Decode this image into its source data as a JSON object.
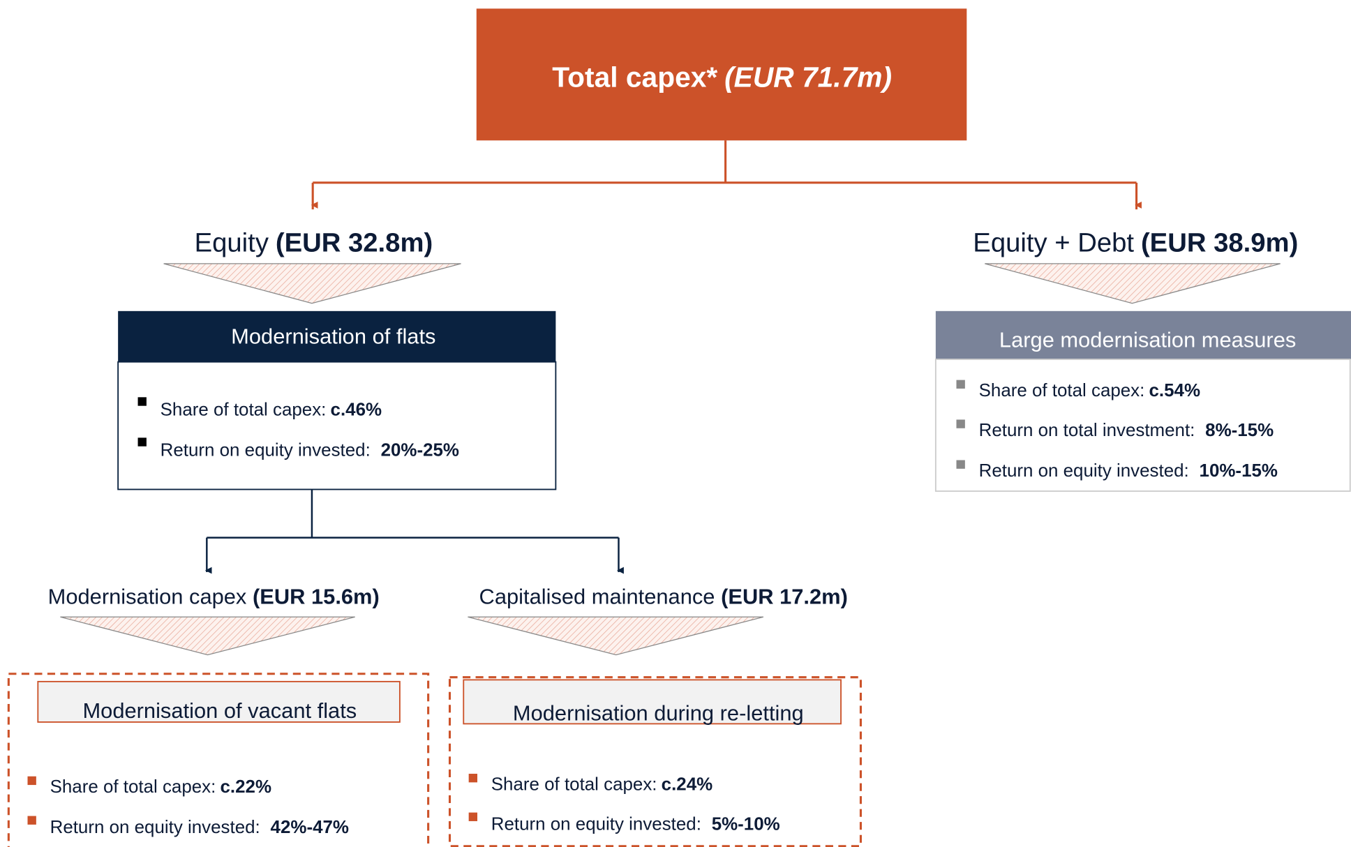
{
  "root": {
    "label": "Total capex*",
    "amount": "(EUR 71.7m)"
  },
  "equity": {
    "label": "Equity",
    "amount": "(EUR 32.8m)",
    "box": {
      "title": "Modernisation of flats",
      "items": [
        {
          "label": "Share of total capex:",
          "value": "c.46%"
        },
        {
          "label": "Return on equity invested:",
          "value": "20%-25%"
        }
      ]
    }
  },
  "equity_debt": {
    "label": "Equity + Debt",
    "amount": "(EUR 38.9m)",
    "box": {
      "title": "Large modernisation measures",
      "items": [
        {
          "label": "Share of total capex:",
          "value": "c.54%"
        },
        {
          "label": "Return on total investment:",
          "value": "8%-15%"
        },
        {
          "label": "Return on equity invested:",
          "value": "10%-15%"
        }
      ]
    }
  },
  "modernisation_capex": {
    "label": "Modernisation capex",
    "amount": "(EUR 15.6m)",
    "box": {
      "title": "Modernisation of vacant flats",
      "items": [
        {
          "label": "Share of total capex:",
          "value": "c.22%"
        },
        {
          "label": "Return on equity invested:",
          "value": "42%-47%"
        }
      ]
    }
  },
  "capitalised_maintenance": {
    "label": "Capitalised maintenance",
    "amount": "(EUR 17.2m)",
    "box": {
      "title": "Modernisation during re-letting",
      "items": [
        {
          "label": "Share of total capex:",
          "value": "c.24%"
        },
        {
          "label": "Return on equity invested:",
          "value": "5%-10%"
        }
      ]
    }
  }
}
